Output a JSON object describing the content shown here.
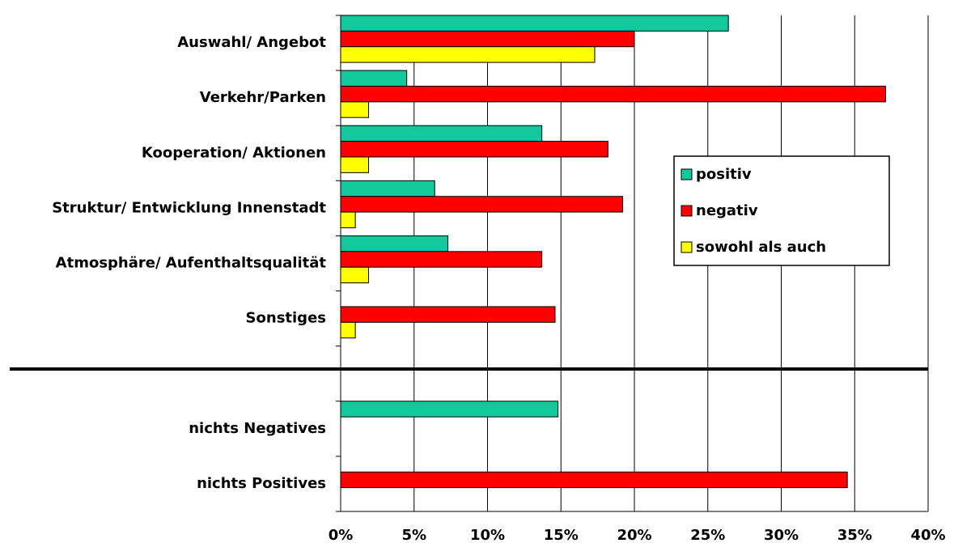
{
  "chart_data": {
    "type": "hbar",
    "categories": [
      "Auswahl/ Angebot",
      "Verkehr/Parken",
      "Kooperation/ Aktionen",
      "Struktur/ Entwicklung Innenstadt",
      "Atmosphäre/ Aufenthaltsqualität",
      "Sonstiges",
      null,
      "nichts Negatives",
      "nichts Positives"
    ],
    "series": [
      {
        "name": "positiv",
        "color": "#12c99b",
        "values": [
          26.4,
          4.5,
          13.7,
          6.4,
          7.3,
          null,
          null,
          14.8,
          null
        ]
      },
      {
        "name": "negativ",
        "color": "#ff0000",
        "values": [
          20.0,
          37.1,
          18.2,
          19.2,
          13.7,
          14.6,
          null,
          null,
          34.5
        ]
      },
      {
        "name": "sowohl als auch",
        "color": "#ffff00",
        "values": [
          17.3,
          1.9,
          1.9,
          1.0,
          1.9,
          1.0,
          null,
          null,
          null
        ]
      }
    ],
    "xlim": [
      0,
      40
    ],
    "xticks": [
      {
        "value": 0,
        "label": "0%"
      },
      {
        "value": 5,
        "label": "5%"
      },
      {
        "value": 10,
        "label": "10%"
      },
      {
        "value": 15,
        "label": "15%"
      },
      {
        "value": 20,
        "label": "20%"
      },
      {
        "value": 25,
        "label": "25%"
      },
      {
        "value": 30,
        "label": "30%"
      },
      {
        "value": 35,
        "label": "35%"
      },
      {
        "value": 40,
        "label": "40%"
      }
    ],
    "grid": true,
    "legend": "right"
  }
}
